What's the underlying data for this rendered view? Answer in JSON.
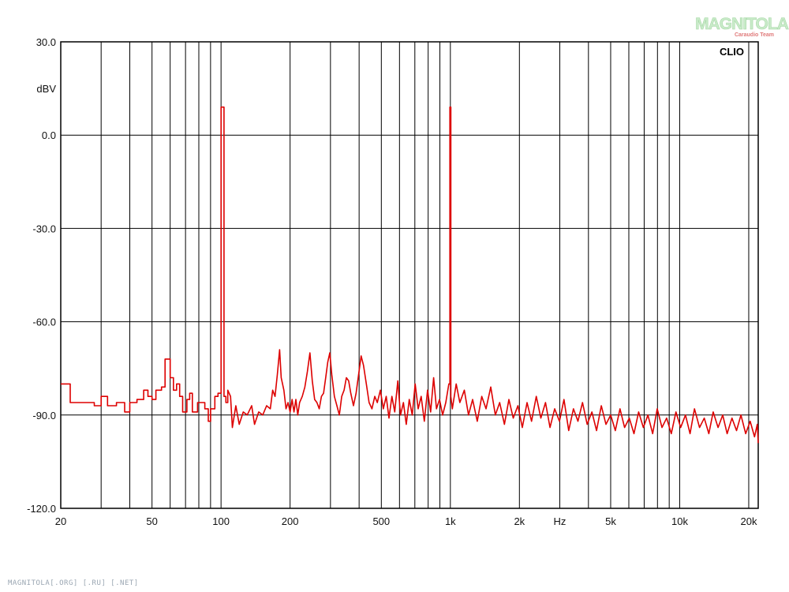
{
  "brand": {
    "clio_label": "CLIO",
    "watermark_title": "MAGNITOLA",
    "watermark_subtitle": "Caraudio Team",
    "footer_text": "MAGNITOLA[.ORG] [.RU] [.NET]"
  },
  "chart_data": {
    "type": "line",
    "title": "",
    "xlabel": "Hz",
    "ylabel": "dBV",
    "x_scale": "log",
    "xlim": [
      20,
      22000
    ],
    "ylim": [
      -120,
      30
    ],
    "grid": true,
    "legend": "none",
    "line_color": "#dd0000",
    "y_ticks": [
      {
        "value": 30,
        "label": "30.0"
      },
      {
        "value": 0,
        "label": "0.0"
      },
      {
        "value": -30,
        "label": "-30.0"
      },
      {
        "value": -60,
        "label": "-60.0"
      },
      {
        "value": -90,
        "label": "-90.0"
      },
      {
        "value": -120,
        "label": "-120.0"
      }
    ],
    "x_tick_labels": [
      {
        "value": 20,
        "label": "20"
      },
      {
        "value": 50,
        "label": "50"
      },
      {
        "value": 100,
        "label": "100"
      },
      {
        "value": 200,
        "label": "200"
      },
      {
        "value": 500,
        "label": "500"
      },
      {
        "value": 1000,
        "label": "1k"
      },
      {
        "value": 2000,
        "label": "2k"
      },
      {
        "value": 5000,
        "label": "5k"
      },
      {
        "value": 10000,
        "label": "10k"
      },
      {
        "value": 20000,
        "label": "20k"
      }
    ],
    "x_gridlines": [
      30,
      40,
      50,
      60,
      70,
      80,
      90,
      100,
      200,
      300,
      400,
      500,
      600,
      700,
      800,
      900,
      1000,
      2000,
      3000,
      4000,
      5000,
      6000,
      7000,
      8000,
      9000,
      10000,
      20000
    ],
    "series": [
      {
        "values": [
          [
            20,
            -80
          ],
          [
            22,
            -80
          ],
          [
            22,
            -86
          ],
          [
            28,
            -86
          ],
          [
            28,
            -87
          ],
          [
            30,
            -87
          ],
          [
            30,
            -84
          ],
          [
            32,
            -84
          ],
          [
            32,
            -87
          ],
          [
            35,
            -87
          ],
          [
            35,
            -86
          ],
          [
            38,
            -86
          ],
          [
            38,
            -89
          ],
          [
            40,
            -89
          ],
          [
            40,
            -86
          ],
          [
            43,
            -86
          ],
          [
            43,
            -85
          ],
          [
            46,
            -85
          ],
          [
            46,
            -82
          ],
          [
            48,
            -82
          ],
          [
            48,
            -84
          ],
          [
            50,
            -84
          ],
          [
            50,
            -85
          ],
          [
            52,
            -85
          ],
          [
            52,
            -82
          ],
          [
            55,
            -82
          ],
          [
            55,
            -81
          ],
          [
            57,
            -81
          ],
          [
            57,
            -72
          ],
          [
            60,
            -72
          ],
          [
            60,
            -78
          ],
          [
            62,
            -78
          ],
          [
            62,
            -82
          ],
          [
            64,
            -82
          ],
          [
            64,
            -80
          ],
          [
            66,
            -80
          ],
          [
            66,
            -84
          ],
          [
            68,
            -84
          ],
          [
            68,
            -89
          ],
          [
            71,
            -89
          ],
          [
            71,
            -85
          ],
          [
            73,
            -85
          ],
          [
            73,
            -83
          ],
          [
            75,
            -83
          ],
          [
            75,
            -89
          ],
          [
            79,
            -89
          ],
          [
            79,
            -86
          ],
          [
            85,
            -86
          ],
          [
            85,
            -88
          ],
          [
            88,
            -88
          ],
          [
            88,
            -92
          ],
          [
            90,
            -92
          ],
          [
            90,
            -88
          ],
          [
            94,
            -88
          ],
          [
            94,
            -84
          ],
          [
            97,
            -84
          ],
          [
            97,
            -83
          ],
          [
            100,
            -83
          ],
          [
            100,
            9
          ],
          [
            103,
            9
          ],
          [
            103,
            -84
          ],
          [
            105,
            -84
          ],
          [
            105,
            -86
          ],
          [
            107,
            -86
          ],
          [
            107,
            -82
          ],
          [
            110,
            -84
          ],
          [
            112,
            -94
          ],
          [
            116,
            -87
          ],
          [
            120,
            -93
          ],
          [
            125,
            -89
          ],
          [
            130,
            -90
          ],
          [
            136,
            -87
          ],
          [
            140,
            -93
          ],
          [
            146,
            -89
          ],
          [
            152,
            -90
          ],
          [
            158,
            -87
          ],
          [
            164,
            -88
          ],
          [
            168,
            -82
          ],
          [
            172,
            -84
          ],
          [
            176,
            -77
          ],
          [
            180,
            -69
          ],
          [
            183,
            -78
          ],
          [
            188,
            -82
          ],
          [
            192,
            -88
          ],
          [
            196,
            -86
          ],
          [
            200,
            -89
          ],
          [
            204,
            -85
          ],
          [
            208,
            -89
          ],
          [
            212,
            -85
          ],
          [
            216,
            -90
          ],
          [
            220,
            -86
          ],
          [
            226,
            -84
          ],
          [
            232,
            -81
          ],
          [
            238,
            -76
          ],
          [
            244,
            -70
          ],
          [
            250,
            -79
          ],
          [
            256,
            -85
          ],
          [
            262,
            -86
          ],
          [
            268,
            -88
          ],
          [
            274,
            -84
          ],
          [
            280,
            -83
          ],
          [
            286,
            -78
          ],
          [
            292,
            -73
          ],
          [
            298,
            -70
          ],
          [
            304,
            -77
          ],
          [
            312,
            -84
          ],
          [
            320,
            -87
          ],
          [
            328,
            -90
          ],
          [
            336,
            -84
          ],
          [
            344,
            -82
          ],
          [
            352,
            -78
          ],
          [
            360,
            -79
          ],
          [
            368,
            -83
          ],
          [
            378,
            -87
          ],
          [
            388,
            -83
          ],
          [
            398,
            -77
          ],
          [
            408,
            -71
          ],
          [
            418,
            -74
          ],
          [
            430,
            -80
          ],
          [
            442,
            -86
          ],
          [
            455,
            -88
          ],
          [
            468,
            -84
          ],
          [
            480,
            -86
          ],
          [
            495,
            -82
          ],
          [
            510,
            -88
          ],
          [
            525,
            -84
          ],
          [
            540,
            -91
          ],
          [
            556,
            -84
          ],
          [
            572,
            -89
          ],
          [
            590,
            -79
          ],
          [
            606,
            -90
          ],
          [
            624,
            -86
          ],
          [
            642,
            -93
          ],
          [
            662,
            -85
          ],
          [
            682,
            -90
          ],
          [
            702,
            -80
          ],
          [
            724,
            -88
          ],
          [
            746,
            -84
          ],
          [
            770,
            -92
          ],
          [
            795,
            -82
          ],
          [
            820,
            -89
          ],
          [
            845,
            -78
          ],
          [
            870,
            -88
          ],
          [
            897,
            -85
          ],
          [
            925,
            -90
          ],
          [
            955,
            -86
          ],
          [
            985,
            -80
          ],
          [
            995,
            -80
          ],
          [
            995,
            9
          ],
          [
            1005,
            9
          ],
          [
            1005,
            -84
          ],
          [
            1020,
            -88
          ],
          [
            1060,
            -80
          ],
          [
            1100,
            -86
          ],
          [
            1150,
            -82
          ],
          [
            1200,
            -90
          ],
          [
            1250,
            -85
          ],
          [
            1310,
            -92
          ],
          [
            1370,
            -84
          ],
          [
            1430,
            -88
          ],
          [
            1500,
            -81
          ],
          [
            1570,
            -90
          ],
          [
            1640,
            -86
          ],
          [
            1720,
            -93
          ],
          [
            1800,
            -85
          ],
          [
            1880,
            -91
          ],
          [
            1970,
            -87
          ],
          [
            2060,
            -94
          ],
          [
            2160,
            -86
          ],
          [
            2260,
            -92
          ],
          [
            2370,
            -84
          ],
          [
            2480,
            -91
          ],
          [
            2600,
            -86
          ],
          [
            2720,
            -94
          ],
          [
            2850,
            -88
          ],
          [
            2990,
            -92
          ],
          [
            3130,
            -85
          ],
          [
            3280,
            -95
          ],
          [
            3440,
            -88
          ],
          [
            3600,
            -92
          ],
          [
            3770,
            -86
          ],
          [
            3950,
            -93
          ],
          [
            4140,
            -89
          ],
          [
            4340,
            -95
          ],
          [
            4550,
            -87
          ],
          [
            4770,
            -93
          ],
          [
            5000,
            -90
          ],
          [
            5240,
            -95
          ],
          [
            5490,
            -88
          ],
          [
            5750,
            -94
          ],
          [
            6030,
            -91
          ],
          [
            6320,
            -96
          ],
          [
            6620,
            -89
          ],
          [
            6940,
            -94
          ],
          [
            7270,
            -90
          ],
          [
            7620,
            -96
          ],
          [
            7980,
            -88
          ],
          [
            8370,
            -94
          ],
          [
            8770,
            -91
          ],
          [
            9190,
            -96
          ],
          [
            9630,
            -89
          ],
          [
            10100,
            -94
          ],
          [
            10600,
            -90
          ],
          [
            11100,
            -96
          ],
          [
            11600,
            -88
          ],
          [
            12200,
            -94
          ],
          [
            12800,
            -91
          ],
          [
            13400,
            -96
          ],
          [
            14000,
            -89
          ],
          [
            14700,
            -94
          ],
          [
            15400,
            -90
          ],
          [
            16100,
            -96
          ],
          [
            16900,
            -91
          ],
          [
            17700,
            -95
          ],
          [
            18500,
            -90
          ],
          [
            19400,
            -96
          ],
          [
            20300,
            -92
          ],
          [
            21200,
            -97
          ],
          [
            21800,
            -93
          ],
          [
            22000,
            -99
          ]
        ]
      }
    ]
  }
}
